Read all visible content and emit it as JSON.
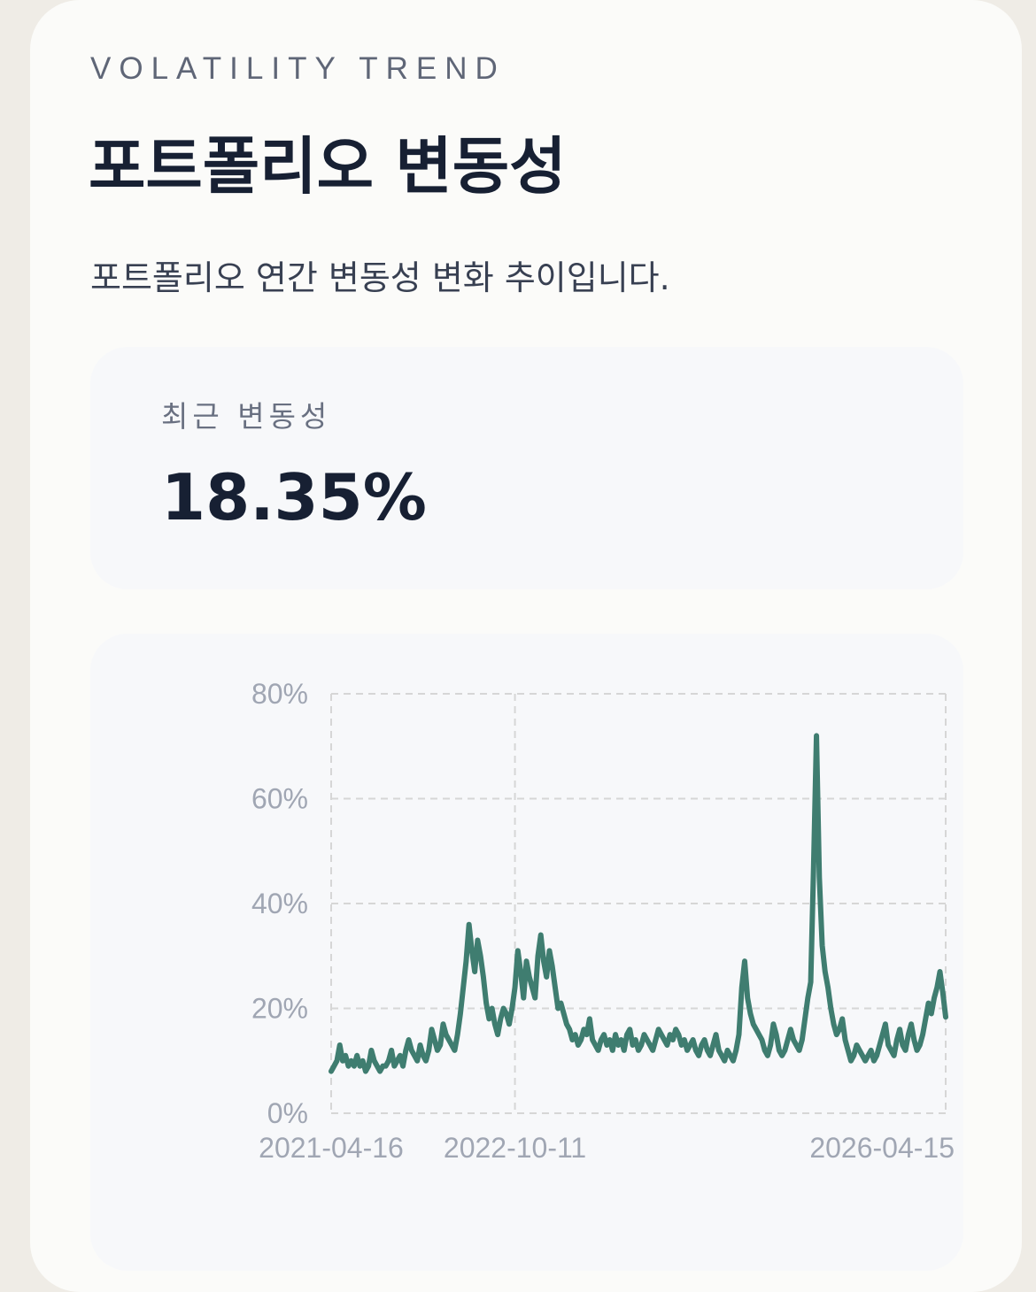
{
  "header": {
    "eyebrow": "VOLATILITY TREND",
    "title": "포트폴리오 변동성",
    "subtitle": "포트폴리오 연간 변동성 변화 추이입니다."
  },
  "metric": {
    "label": "최근 변동성",
    "value": "18.35%"
  },
  "colors": {
    "line": "#3f7d70",
    "grid": "#d6d6d6",
    "text_muted": "#a0a6b3"
  },
  "chart_data": {
    "type": "line",
    "ylim": [
      0,
      80
    ],
    "y_ticks": [
      "0%",
      "20%",
      "40%",
      "60%",
      "80%"
    ],
    "x_ticks": [
      "2021-04-16",
      "2022-10-11",
      "2026-04-15"
    ],
    "grid": true,
    "series": [
      {
        "values": [
          8,
          9,
          10,
          13,
          10,
          11,
          9,
          10,
          9,
          11,
          9,
          10,
          8,
          9,
          12,
          10,
          9,
          8,
          9,
          9,
          10,
          12,
          9,
          10,
          11,
          9,
          12,
          14,
          12,
          11,
          10,
          13,
          11,
          10,
          12,
          16,
          14,
          12,
          13,
          17,
          15,
          14,
          13,
          12,
          15,
          19,
          24,
          29,
          36,
          31,
          27,
          33,
          30,
          26,
          21,
          18,
          20,
          17,
          15,
          18,
          20,
          19,
          17,
          20,
          24,
          31,
          27,
          22,
          29,
          26,
          24,
          22,
          30,
          34,
          29,
          26,
          31,
          28,
          24,
          20,
          21,
          19,
          17,
          16,
          14,
          15,
          13,
          14,
          16,
          15,
          18,
          14,
          13,
          12,
          14,
          15,
          13,
          14,
          12,
          15,
          13,
          14,
          12,
          15,
          16,
          13,
          14,
          12,
          13,
          15,
          14,
          13,
          12,
          14,
          16,
          15,
          14,
          13,
          15,
          14,
          16,
          15,
          13,
          14,
          12,
          13,
          14,
          12,
          11,
          13,
          14,
          12,
          11,
          13,
          15,
          12,
          11,
          10,
          12,
          11,
          10,
          12,
          15,
          24,
          29,
          22,
          19,
          17,
          16,
          15,
          14,
          12,
          11,
          13,
          17,
          15,
          12,
          11,
          12,
          14,
          16,
          14,
          13,
          12,
          14,
          18,
          22,
          25,
          47,
          72,
          45,
          32,
          27,
          24,
          20,
          17,
          15,
          16,
          18,
          14,
          12,
          10,
          11,
          13,
          12,
          11,
          10,
          11,
          12,
          10,
          11,
          13,
          15,
          17,
          13,
          12,
          11,
          14,
          16,
          13,
          12,
          15,
          17,
          14,
          12,
          13,
          15,
          18,
          21,
          19,
          22,
          24,
          27,
          23,
          18.35
        ]
      }
    ]
  }
}
